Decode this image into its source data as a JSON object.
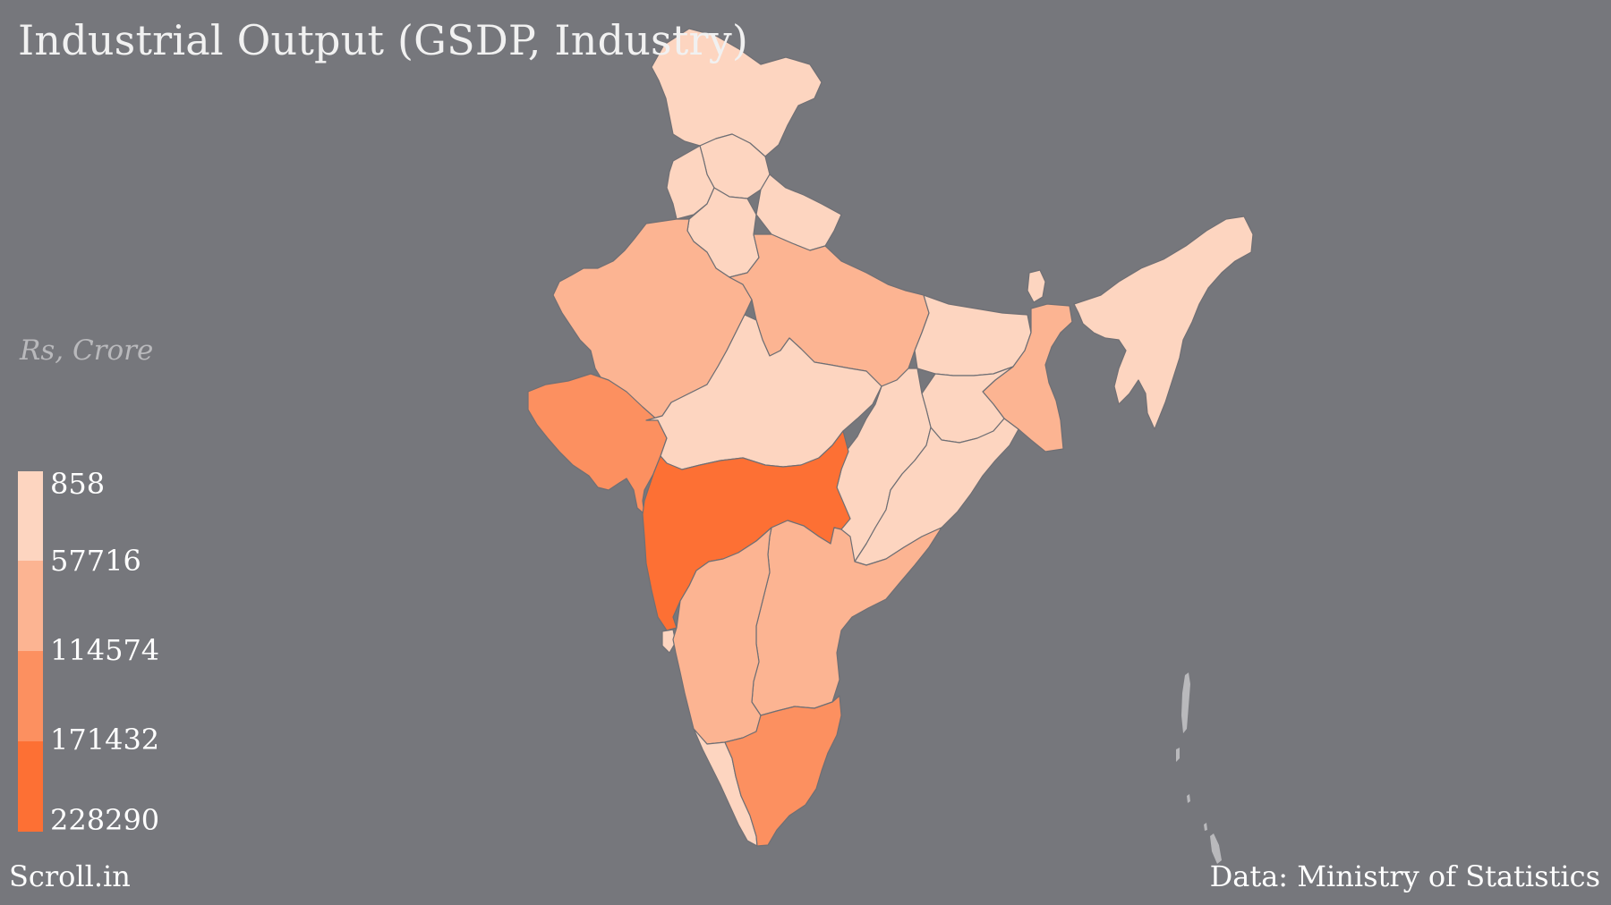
{
  "title": "Industrial Output (GSDP, Industry)",
  "units_label": "Rs, Crore",
  "legend": {
    "breaks": [
      "858",
      "57716",
      "114574",
      "171432",
      "228290"
    ],
    "colors": [
      "#fdd5c0",
      "#fcb492",
      "#fc9060",
      "#fd7034"
    ]
  },
  "colors": {
    "background": "#76777c",
    "border": "#6f6f74",
    "islands": "#b9b9bc"
  },
  "footer": {
    "brand": "Scroll.in",
    "source": "Data: Ministry of Statistics"
  },
  "map_data": {
    "regions": [
      {
        "name": "Jammu & Kashmir",
        "class": 0
      },
      {
        "name": "Himachal Pradesh",
        "class": 0
      },
      {
        "name": "Punjab",
        "class": 0
      },
      {
        "name": "Haryana",
        "class": 0
      },
      {
        "name": "Uttarakhand",
        "class": 0
      },
      {
        "name": "Rajasthan",
        "class": 1
      },
      {
        "name": "Uttar Pradesh",
        "class": 1
      },
      {
        "name": "Bihar",
        "class": 0
      },
      {
        "name": "Sikkim",
        "class": 0
      },
      {
        "name": "Northeast",
        "class": 0
      },
      {
        "name": "West Bengal",
        "class": 1
      },
      {
        "name": "Jharkhand",
        "class": 0
      },
      {
        "name": "Gujarat",
        "class": 2
      },
      {
        "name": "Madhya Pradesh",
        "class": 0
      },
      {
        "name": "Chhattisgarh",
        "class": 0
      },
      {
        "name": "Odisha",
        "class": 0
      },
      {
        "name": "Maharashtra",
        "class": 3
      },
      {
        "name": "Goa",
        "class": 0
      },
      {
        "name": "Andhra Pradesh",
        "class": 1
      },
      {
        "name": "Karnataka",
        "class": 1
      },
      {
        "name": "Kerala",
        "class": 0
      },
      {
        "name": "Tamil Nadu",
        "class": 2
      }
    ]
  }
}
